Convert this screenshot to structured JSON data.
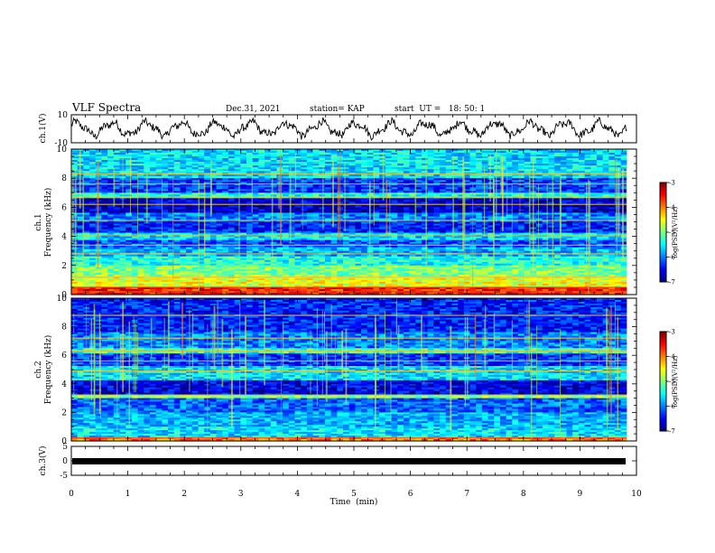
{
  "header": {
    "title": "VLF Spectra",
    "date": "Dec.31, 2021",
    "station": "station= KAP",
    "start": "start  UT =   18: 50: 1"
  },
  "chart_data": [
    {
      "type": "line",
      "panel": "ch1-waveform",
      "ylabel": "ch.1(V)",
      "ylim": [
        -10,
        10
      ],
      "yticks": [
        "10",
        "-10"
      ],
      "xlim": [
        0,
        10
      ],
      "appearance": "noisy oscillating trace of roughly 16 slow cycles between about -6 and 6 V"
    },
    {
      "type": "heatmap",
      "panel": "ch1-spectrogram",
      "ylabel": "ch.1\nFrequency (kHz)",
      "ylabel_line1": "ch.1",
      "ylabel_line2": "Frequency (kHz)",
      "ylim": [
        0,
        10
      ],
      "yticks": [
        "0",
        "2",
        "4",
        "6",
        "8",
        "10"
      ],
      "xlim": [
        0,
        9.83
      ],
      "bands": [
        {
          "from": 0,
          "to": 0.5,
          "level": -3.6
        },
        {
          "from": 0.5,
          "to": 1.3,
          "level": -4.6
        },
        {
          "from": 1.3,
          "to": 2.0,
          "level": -5.0
        },
        {
          "from": 2.0,
          "to": 2.6,
          "level": -5.4
        },
        {
          "from": 2.6,
          "to": 3.2,
          "level": -5.8
        },
        {
          "from": 3.2,
          "to": 3.8,
          "level": -6.2
        },
        {
          "from": 3.8,
          "to": 4.2,
          "level": -5.6
        },
        {
          "from": 4.2,
          "to": 5.0,
          "level": -6.4
        },
        {
          "from": 5.0,
          "to": 5.6,
          "level": -6.0
        },
        {
          "from": 5.6,
          "to": 6.6,
          "level": -6.7
        },
        {
          "from": 6.6,
          "to": 7.0,
          "level": -5.4
        },
        {
          "from": 7.0,
          "to": 8.0,
          "level": -6.3
        },
        {
          "from": 8.0,
          "to": 10.0,
          "level": -5.6
        }
      ],
      "lines_khz": [
        0.2,
        0.5,
        1.2,
        2.8,
        3.4,
        4.1,
        5.1,
        6.2,
        6.7,
        7.6,
        8.3
      ],
      "colorbar": {
        "label": "log(PSD)(V²/Hz)",
        "min": -7,
        "max": -3,
        "ticks": [
          "-3",
          "-4",
          "-5",
          "-6",
          "-7"
        ]
      }
    },
    {
      "type": "heatmap",
      "panel": "ch2-spectrogram",
      "ylabel": "ch.2\nFrequency (kHz)",
      "ylabel_line1": "ch.2",
      "ylabel_line2": "Frequency (kHz)",
      "ylim": [
        0,
        10
      ],
      "yticks": [
        "0",
        "2",
        "4",
        "6",
        "8",
        "10"
      ],
      "xlim": [
        0,
        9.83
      ],
      "bands": [
        {
          "from": 0,
          "to": 0.3,
          "level": -4.0
        },
        {
          "from": 0.3,
          "to": 1.0,
          "level": -5.6
        },
        {
          "from": 1.0,
          "to": 2.0,
          "level": -5.8
        },
        {
          "from": 2.0,
          "to": 3.0,
          "level": -6.1
        },
        {
          "from": 3.0,
          "to": 3.3,
          "level": -4.9
        },
        {
          "from": 3.3,
          "to": 4.3,
          "level": -6.6
        },
        {
          "from": 4.3,
          "to": 5.2,
          "level": -5.6
        },
        {
          "from": 5.2,
          "to": 6.1,
          "level": -6.3
        },
        {
          "from": 6.1,
          "to": 6.5,
          "level": -5.3
        },
        {
          "from": 6.5,
          "to": 7.6,
          "level": -6.0
        },
        {
          "from": 7.6,
          "to": 10.0,
          "level": -6.4
        }
      ],
      "lines_khz": [
        0.2,
        3.2,
        4.9,
        5.6,
        6.3,
        7.2,
        8.8
      ],
      "colorbar": {
        "label": "log(PSD)(V²/Hz)",
        "min": -7,
        "max": -3,
        "ticks": [
          "-3",
          "-4",
          "-5",
          "-6",
          "-7"
        ]
      }
    },
    {
      "type": "line",
      "panel": "ch3-waveform",
      "ylabel": "ch.3(V)",
      "ylim": [
        -5,
        5
      ],
      "yticks": [
        "5",
        "0",
        "-5"
      ],
      "xlim": [
        0,
        10
      ],
      "xlabel": "Time  (min)",
      "xticks": [
        "0",
        "1",
        "2",
        "3",
        "4",
        "5",
        "6",
        "7",
        "8",
        "9",
        "10"
      ],
      "appearance": "dense saturated band centred near -0.7 V across full duration"
    }
  ]
}
